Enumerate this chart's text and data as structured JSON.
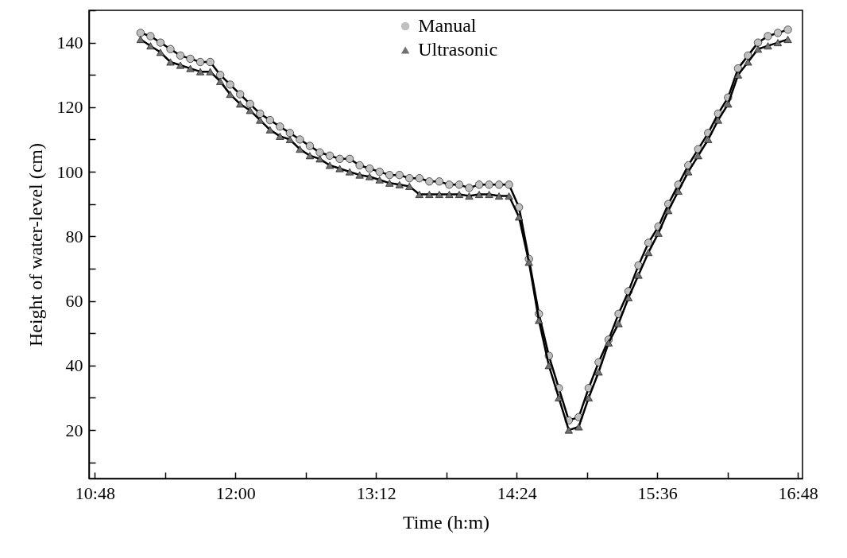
{
  "chart_data": {
    "type": "line",
    "xlabel": "Time (h:m)",
    "ylabel": "Height of water-level (cm)",
    "x": [
      11.19,
      11.275,
      11.36,
      11.445,
      11.53,
      11.615,
      11.7,
      11.785,
      11.87,
      11.955,
      12.04,
      12.125,
      12.21,
      12.295,
      12.38,
      12.465,
      12.55,
      12.635,
      12.72,
      12.805,
      12.89,
      12.975,
      13.06,
      13.145,
      13.23,
      13.315,
      13.4,
      13.485,
      13.57,
      13.655,
      13.74,
      13.825,
      13.91,
      13.995,
      14.08,
      14.165,
      14.25,
      14.335,
      14.42,
      14.505,
      14.59,
      14.675,
      14.76,
      14.845,
      14.93,
      15.015,
      15.1,
      15.185,
      15.27,
      15.355,
      15.44,
      15.525,
      15.61,
      15.695,
      15.78,
      15.865,
      15.95,
      16.035,
      16.12,
      16.205,
      16.29,
      16.375,
      16.46,
      16.545,
      16.63,
      16.715
    ],
    "series": [
      {
        "name": "Manual",
        "color": "#c0c0c0",
        "marker": "circle",
        "values": [
          143,
          142,
          140,
          138,
          136,
          135,
          134,
          134,
          130,
          127,
          124,
          121,
          118,
          116,
          114,
          112,
          110,
          108,
          106,
          105,
          104,
          104,
          102,
          101,
          100,
          99,
          99,
          98,
          98,
          97,
          97,
          96,
          96,
          95,
          96,
          96,
          96,
          96,
          89,
          73,
          56,
          43,
          33,
          23,
          24,
          33,
          41,
          48,
          56,
          63,
          71,
          78,
          83,
          90,
          96,
          102,
          107,
          112,
          118,
          123,
          132,
          136,
          140,
          142,
          143,
          144
        ]
      },
      {
        "name": "Ultrasonic",
        "color": "#707070",
        "marker": "triangle",
        "values": [
          141,
          139,
          137,
          134,
          133,
          132,
          131,
          131,
          128,
          124,
          121,
          119,
          116,
          113,
          111,
          110,
          107,
          105,
          104,
          102,
          101,
          100,
          99,
          98.5,
          97.5,
          96.5,
          96,
          95.5,
          93,
          93,
          93,
          93,
          93,
          92.5,
          93,
          93,
          92.5,
          92.5,
          86,
          72,
          54,
          40,
          30,
          20,
          21,
          30,
          38,
          47,
          53,
          61,
          68,
          75,
          81,
          88,
          94,
          100,
          105,
          110,
          116,
          121,
          130,
          134,
          138,
          139,
          140,
          141
        ]
      }
    ],
    "xlim": [
      10.75,
      16.84
    ],
    "xticks": [
      {
        "value": 10.8,
        "label": "10:48"
      },
      {
        "value": 11.4,
        "label": null
      },
      {
        "value": 12,
        "label": "12:00"
      },
      {
        "value": 12.6,
        "label": null
      },
      {
        "value": 13.2,
        "label": "13:12"
      },
      {
        "value": 13.8,
        "label": null
      },
      {
        "value": 14.4,
        "label": "14:24"
      },
      {
        "value": 15,
        "label": null
      },
      {
        "value": 15.6,
        "label": "15:36"
      },
      {
        "value": 16.2,
        "label": null
      },
      {
        "value": 16.8,
        "label": "16:48"
      }
    ],
    "ylim": [
      5,
      150
    ],
    "yticks": [
      {
        "value": 10,
        "label": null
      },
      20,
      {
        "value": 30,
        "label": null
      },
      40,
      {
        "value": 50,
        "label": null
      },
      60,
      {
        "value": 70,
        "label": null
      },
      80,
      {
        "value": 90,
        "label": null
      },
      100,
      {
        "value": 110,
        "label": null
      },
      120,
      {
        "value": 130,
        "label": null
      },
      140,
      {
        "value": 150,
        "label": null
      }
    ],
    "grid": false,
    "legend": "top"
  }
}
